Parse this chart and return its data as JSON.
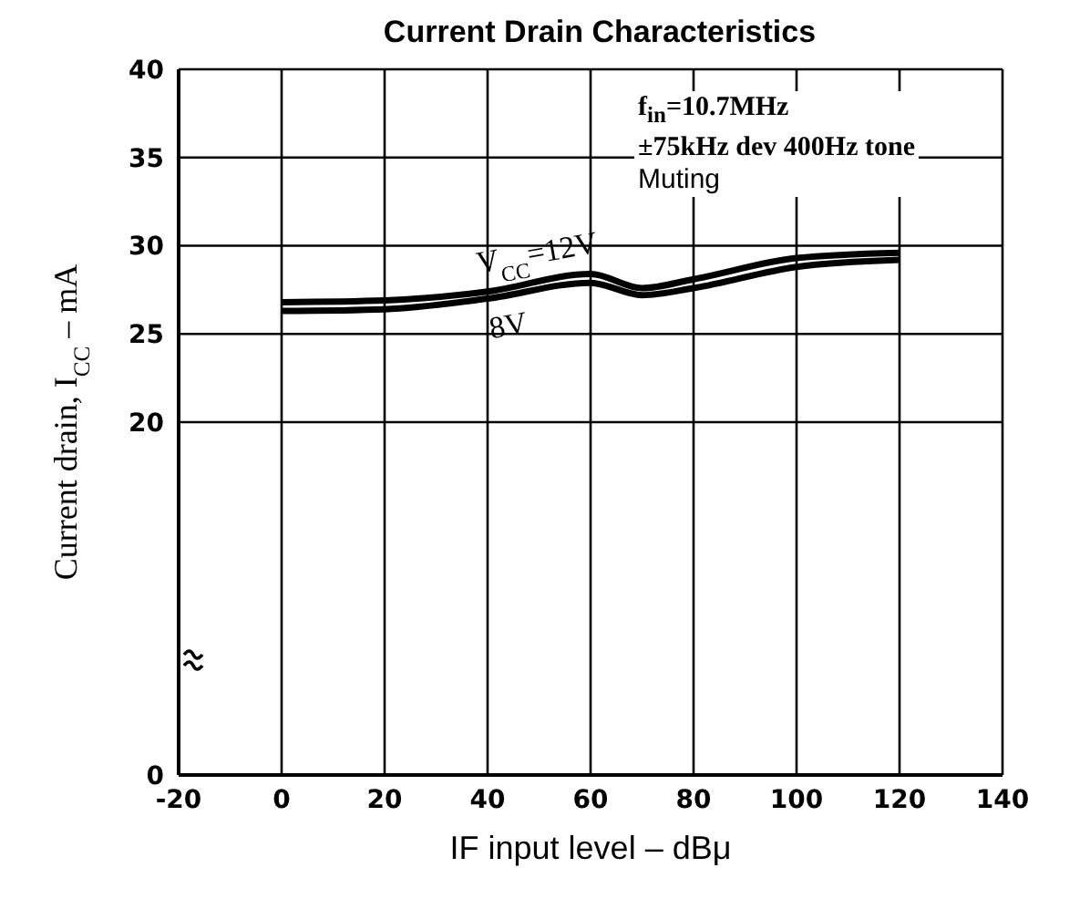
{
  "chart_data": {
    "type": "line",
    "title": "Current Drain Characteristics",
    "xlabel": "IF input level – dBμ",
    "ylabel": "Current drain, I$_{CC}$ – mA",
    "x": [
      0,
      20,
      40,
      60,
      70,
      80,
      100,
      120
    ],
    "series": [
      {
        "name": "V$_{CC}$=12V",
        "color": "#000000",
        "values": [
          26.8,
          26.9,
          27.4,
          28.4,
          27.6,
          28.1,
          29.3,
          29.6
        ]
      },
      {
        "name": "8V",
        "color": "#000000",
        "values": [
          26.3,
          26.4,
          27.0,
          27.9,
          27.2,
          27.6,
          28.8,
          29.2
        ]
      }
    ],
    "xlim": [
      -20,
      140
    ],
    "xticks": [
      -20,
      0,
      20,
      40,
      60,
      80,
      100,
      120,
      140
    ],
    "ylim": [
      0,
      40
    ],
    "yticks": [
      0,
      20,
      25,
      30,
      35,
      40
    ],
    "grid": true,
    "legend": false,
    "marker": "none",
    "line_style": "solid",
    "annotations": [
      "f$_{in}$=10.7MHz",
      "±75kHz dev 400Hz tone",
      "Muting"
    ]
  }
}
